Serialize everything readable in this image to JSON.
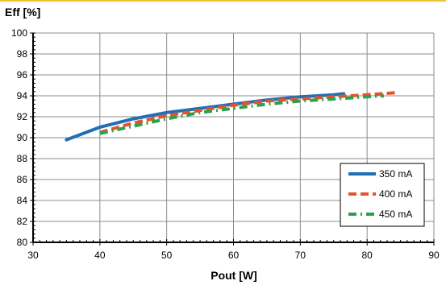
{
  "chart_data": {
    "type": "line",
    "title": "",
    "ylabel": "Eff [%]",
    "xlabel": "Pout [W]",
    "xlim": [
      30,
      90
    ],
    "ylim": [
      80,
      100
    ],
    "x_ticks": [
      30,
      40,
      50,
      60,
      70,
      80,
      90
    ],
    "y_ticks": [
      80,
      82,
      84,
      86,
      88,
      90,
      92,
      94,
      96,
      98,
      100
    ],
    "grid": true,
    "legend_position": "right",
    "series": [
      {
        "name": "350 mA",
        "color": "#1f6fb5",
        "style": "solid",
        "x": [
          35,
          40,
          45,
          50,
          55,
          60,
          65,
          70,
          75,
          76.5
        ],
        "y": [
          89.8,
          91.0,
          91.8,
          92.4,
          92.8,
          93.2,
          93.6,
          93.9,
          94.1,
          94.2
        ]
      },
      {
        "name": "400 mA",
        "color": "#e8522a",
        "style": "dash",
        "x": [
          40,
          45,
          50,
          55,
          60,
          65,
          70,
          75,
          80,
          84.5
        ],
        "y": [
          90.5,
          91.4,
          92.1,
          92.6,
          93.1,
          93.5,
          93.7,
          93.9,
          94.1,
          94.3
        ]
      },
      {
        "name": "450 mA",
        "color": "#2ca04a",
        "style": "dashdot",
        "x": [
          40,
          45,
          50,
          55,
          60,
          65,
          70,
          75,
          80,
          82.5
        ],
        "y": [
          90.4,
          91.1,
          91.8,
          92.4,
          92.8,
          93.2,
          93.5,
          93.7,
          93.9,
          94.0
        ]
      }
    ]
  }
}
